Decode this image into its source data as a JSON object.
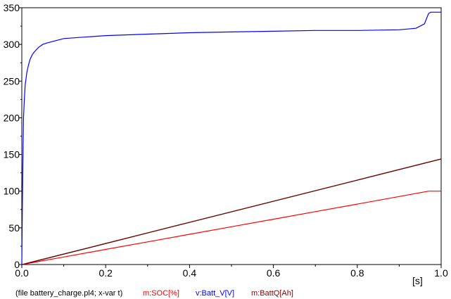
{
  "chart_data": {
    "type": "line",
    "title": "",
    "xlabel": "",
    "ylabel": "",
    "x_unit": "[s]",
    "xlim": [
      0,
      1.0
    ],
    "ylim": [
      0,
      350
    ],
    "x_ticks": [
      0.0,
      0.2,
      0.4,
      0.6,
      0.8,
      1.0
    ],
    "x_tick_labels": [
      "0.0",
      "0.2",
      "0.4",
      "0.6",
      "0.8",
      "1.0"
    ],
    "y_ticks": [
      0,
      50,
      100,
      150,
      200,
      250,
      300,
      350
    ],
    "y_tick_labels": [
      "0",
      "50",
      "100",
      "150",
      "200",
      "250",
      "300",
      "350"
    ],
    "grid": false,
    "file_info": "(file battery_charge.pl4; x-var t)",
    "series": [
      {
        "name": "m:SOC[%]",
        "color": "#ff0000",
        "x": [
          0.0,
          0.1,
          0.2,
          0.3,
          0.4,
          0.5,
          0.6,
          0.7,
          0.8,
          0.9,
          0.97,
          1.0
        ],
        "y": [
          0,
          10.3,
          20.6,
          30.9,
          41.2,
          51.5,
          61.8,
          72.1,
          82.4,
          92.7,
          100,
          100
        ]
      },
      {
        "name": "v:Batt_V[V]",
        "color": "#0000ff",
        "x": [
          0.0,
          0.002,
          0.004,
          0.006,
          0.008,
          0.012,
          0.016,
          0.02,
          0.025,
          0.03,
          0.04,
          0.05,
          0.06,
          0.08,
          0.1,
          0.15,
          0.2,
          0.3,
          0.4,
          0.5,
          0.6,
          0.7,
          0.8,
          0.9,
          0.94,
          0.96,
          0.97,
          0.975,
          1.0
        ],
        "y": [
          0,
          120,
          200,
          225,
          245,
          262,
          272,
          280,
          286,
          290,
          296,
          300,
          302,
          305,
          308,
          310,
          312,
          314,
          316,
          317,
          318,
          319,
          319,
          320,
          322,
          328,
          342,
          344,
          344
        ]
      },
      {
        "name": "m:BattQ[Ah]",
        "color": "#8b0000",
        "x": [
          0.0,
          0.1,
          0.2,
          0.3,
          0.4,
          0.5,
          0.6,
          0.7,
          0.8,
          0.9,
          1.0
        ],
        "y": [
          0,
          14.4,
          28.8,
          43.2,
          57.6,
          72.0,
          86.4,
          100.8,
          115.2,
          129.6,
          144
        ]
      }
    ]
  }
}
